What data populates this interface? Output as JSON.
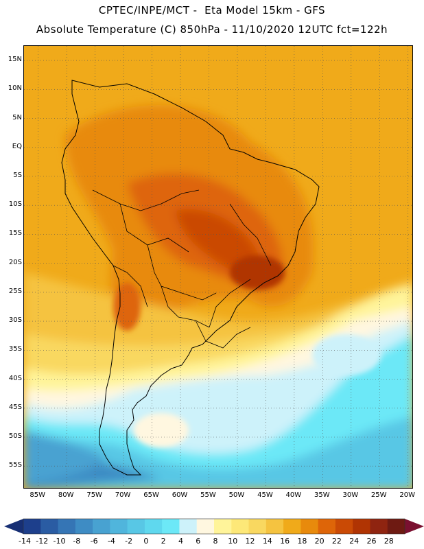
{
  "header": {
    "line1": "CPTEC/INPE/MCT -  Eta Model 15km - GFS",
    "line2": "Absolute Temperature (C) 850hPa - 11/10/2020 12UTC fct=122h"
  },
  "lat_labels": [
    "15N",
    "10N",
    "5N",
    "EQ",
    "5S",
    "10S",
    "15S",
    "20S",
    "25S",
    "30S",
    "35S",
    "40S",
    "45S",
    "50S",
    "55S"
  ],
  "lat_values": [
    15,
    10,
    5,
    0,
    -5,
    -10,
    -15,
    -20,
    -25,
    -30,
    -35,
    -40,
    -45,
    -50,
    -55
  ],
  "lon_labels": [
    "85W",
    "80W",
    "75W",
    "70W",
    "65W",
    "60W",
    "55W",
    "50W",
    "45W",
    "40W",
    "35W",
    "30W",
    "25W",
    "20W"
  ],
  "lon_values": [
    -85,
    -80,
    -75,
    -70,
    -65,
    -60,
    -55,
    -50,
    -45,
    -40,
    -35,
    -30,
    -25,
    -20
  ],
  "colorbar": {
    "labels": [
      "-14",
      "-12",
      "-10",
      "-8",
      "-6",
      "-4",
      "-2",
      "0",
      "2",
      "4",
      "6",
      "8",
      "10",
      "12",
      "14",
      "16",
      "18",
      "20",
      "22",
      "24",
      "26",
      "28"
    ],
    "colors": [
      "#1d3f8c",
      "#2a5ca3",
      "#3575b5",
      "#3e8cc4",
      "#48a2d1",
      "#50b5dc",
      "#58c7e5",
      "#5fd8ee",
      "#6ce8f7",
      "#cdf2fa",
      "#fff7e0",
      "#fff49a",
      "#fde878",
      "#f9d860",
      "#f5c340",
      "#f0aa1a",
      "#e88a0c",
      "#de6508",
      "#ca4a05",
      "#b03403",
      "#8f2410",
      "#6e1a12"
    ],
    "under_color": "#172f74",
    "over_color": "#7a1030"
  }
}
